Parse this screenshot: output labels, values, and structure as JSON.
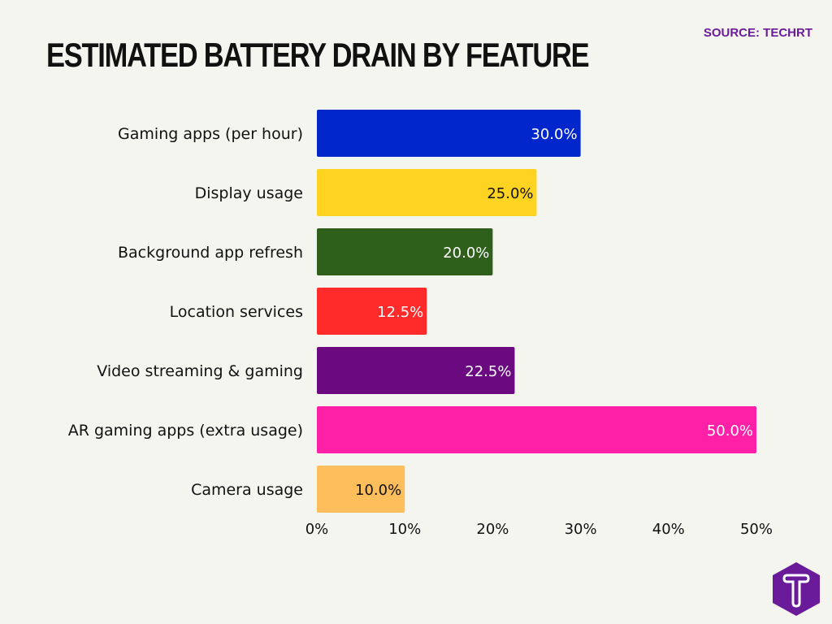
{
  "source": "SOURCE: TECHRT",
  "chart_data": {
    "type": "bar",
    "orientation": "horizontal",
    "title": "ESTIMATED BATTERY DRAIN BY FEATURE",
    "categories": [
      "Gaming apps (per hour)",
      "Display usage",
      "Background app refresh",
      "Location services",
      "Video streaming & gaming",
      "AR gaming apps (extra usage)",
      "Camera usage"
    ],
    "values": [
      30.0,
      25.0,
      20.0,
      12.5,
      22.5,
      50.0,
      10.0
    ],
    "data_labels": [
      "30.0%",
      "25.0%",
      "20.0%",
      "12.5%",
      "22.5%",
      "50.0%",
      "10.0%"
    ],
    "colors": [
      "#0026cc",
      "#ffd321",
      "#2e5f1b",
      "#ff2b2b",
      "#6b0a80",
      "#ff20a8",
      "#ffbe5c"
    ],
    "label_colors": [
      "#ffffff",
      "#111111",
      "#ffffff",
      "#ffffff",
      "#ffffff",
      "#ffffff",
      "#111111"
    ],
    "xlim": [
      0,
      50
    ],
    "xticks": [
      0,
      10,
      20,
      30,
      40,
      50
    ],
    "xtick_labels": [
      "0%",
      "10%",
      "20%",
      "30%",
      "40%",
      "50%"
    ],
    "grid": false,
    "legend": "none"
  },
  "logo": {
    "letter": "T",
    "color": "#6a1b9a"
  }
}
